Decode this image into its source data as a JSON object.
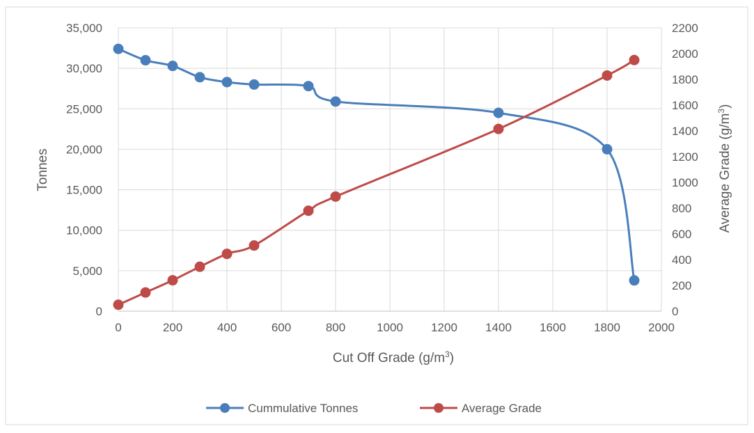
{
  "chart_data": {
    "type": "line",
    "title": "",
    "xlabel": "Cut Off  Grade (g/m",
    "xlabel_sup": "3",
    "xlabel_end": ")",
    "ylabel": "Tonnes",
    "y2label": "Average Grade (g/m",
    "y2label_sup": "3",
    "y2label_end": ")",
    "xlim": [
      0,
      2000
    ],
    "ylim": [
      0,
      35000
    ],
    "y2lim": [
      0,
      2200
    ],
    "x_ticks": [
      0,
      200,
      400,
      600,
      800,
      1000,
      1200,
      1400,
      1600,
      1800,
      2000
    ],
    "x_tick_labels": [
      "0",
      "200",
      "400",
      "600",
      "800",
      "1000",
      "1200",
      "1400",
      "1600",
      "1800",
      "2000"
    ],
    "y_ticks": [
      0,
      5000,
      10000,
      15000,
      20000,
      25000,
      30000,
      35000
    ],
    "y_tick_labels": [
      "0",
      "5,000",
      "10,000",
      "15,000",
      "20,000",
      "25,000",
      "30,000",
      "35,000"
    ],
    "y2_ticks": [
      0,
      200,
      400,
      600,
      800,
      1000,
      1200,
      1400,
      1600,
      1800,
      2000,
      2200
    ],
    "y2_tick_labels": [
      "0",
      "200",
      "400",
      "600",
      "800",
      "1000",
      "1200",
      "1400",
      "1600",
      "1800",
      "2000",
      "2200"
    ],
    "grid": true,
    "legend_position": "bottom",
    "series": [
      {
        "name": "Cummulative Tonnes",
        "axis": "left",
        "color": "#4a7ebb",
        "x": [
          0,
          100,
          200,
          300,
          400,
          500,
          700,
          800,
          1400,
          1800,
          1900
        ],
        "y": [
          32400,
          31000,
          30300,
          28900,
          28300,
          28000,
          27800,
          25900,
          24500,
          20000,
          3800
        ]
      },
      {
        "name": "Average Grade",
        "axis": "right",
        "color": "#be4b48",
        "x": [
          0,
          100,
          200,
          300,
          400,
          500,
          700,
          800,
          1400,
          1800,
          1900
        ],
        "y": [
          50,
          145,
          240,
          345,
          445,
          510,
          780,
          890,
          1415,
          1830,
          1950
        ]
      }
    ]
  }
}
